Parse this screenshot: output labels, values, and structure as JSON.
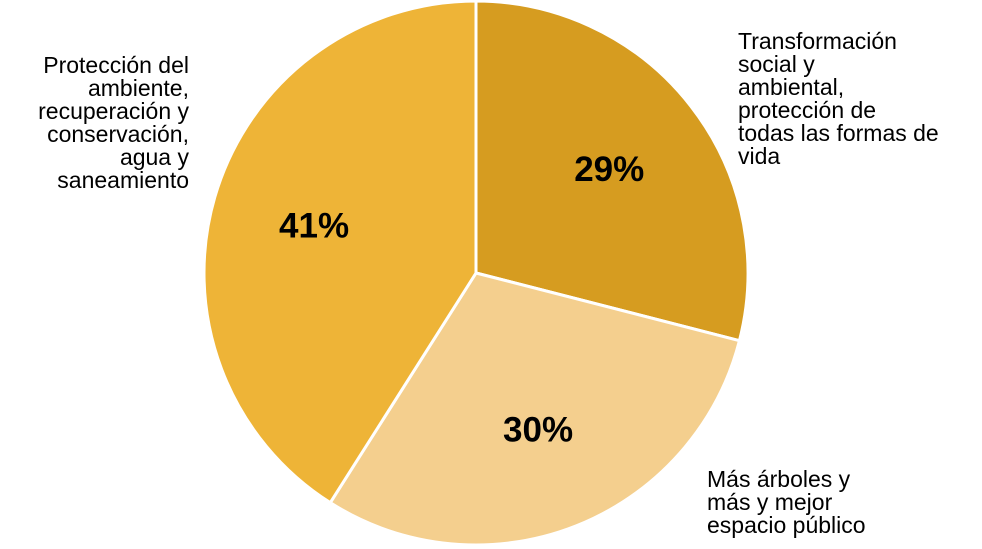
{
  "chart_data": {
    "type": "pie",
    "title": "",
    "slices": [
      {
        "label_lines": [
          "Transformación",
          "social y",
          "ambiental,",
          "protección de",
          "todas las formas de",
          "vida"
        ],
        "value": 29,
        "value_label": "29%",
        "color": "#D69C20"
      },
      {
        "label_lines": [
          "Más árboles y",
          "más y mejor",
          "espacio público"
        ],
        "value": 30,
        "value_label": "30%",
        "color": "#F4CF8E"
      },
      {
        "label_lines": [
          "Protección del",
          "ambiente,",
          "recuperación y",
          "conservación,",
          "agua y",
          "saneamiento"
        ],
        "value": 41,
        "value_label": "41%",
        "color": "#EEB437"
      }
    ],
    "legend": "none",
    "start_angle_deg": 0,
    "direction": "clockwise"
  }
}
